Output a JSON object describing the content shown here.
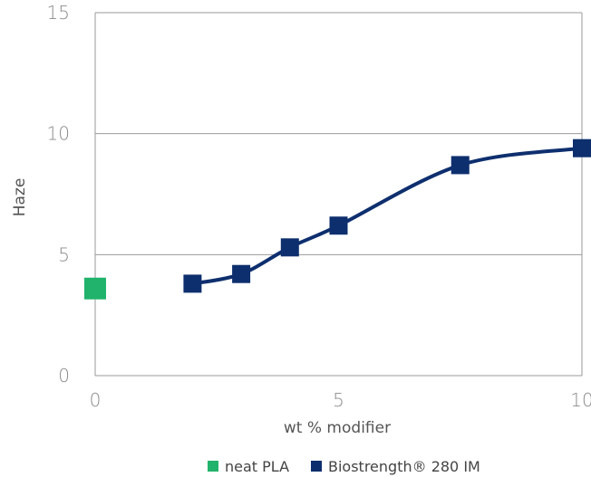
{
  "chart_data": {
    "type": "line",
    "xlabel": "wt % modifier",
    "ylabel": "Haze",
    "xlim": [
      0,
      10
    ],
    "ylim": [
      0,
      15
    ],
    "xticks": [
      0,
      5,
      10
    ],
    "yticks": [
      0,
      5,
      10,
      15
    ],
    "grid": true,
    "legend_position": "bottom",
    "series": [
      {
        "name": "neat PLA",
        "color": "#21b36b",
        "marker": "square",
        "line": false,
        "x": [
          0
        ],
        "y": [
          3.6
        ]
      },
      {
        "name": "Biostrength® 280 IM",
        "color": "#0e2f6e",
        "marker": "square",
        "line": true,
        "x": [
          2,
          3,
          4,
          5,
          7.5,
          10
        ],
        "y": [
          3.8,
          4.2,
          5.3,
          6.2,
          8.7,
          9.4
        ]
      }
    ]
  }
}
